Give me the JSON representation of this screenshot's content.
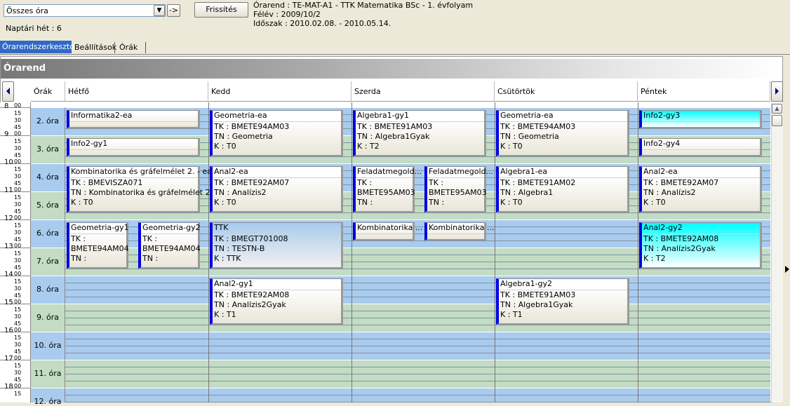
{
  "filter": {
    "selected": "Összes óra",
    "go": "->"
  },
  "refresh": "Frissítés",
  "info": [
    "Órarend : TE-MAT-A1 - TTK Matematika BSc - 1. évfolyam",
    "Félév : 2009/10/2",
    "Időszak : 2010.02.08. - 2010.05.14."
  ],
  "week": "Naptári hét : 6",
  "tabs": [
    "Órarendszerkeszto",
    "Beállítások",
    "Órák"
  ],
  "panel": {
    "title": "Órarend",
    "periods_header": "Órák",
    "days": [
      "Hétfő",
      "Kedd",
      "Szerda",
      "Csütörtök",
      "Péntek"
    ],
    "hours": [
      "8",
      "9",
      "10",
      "11",
      "12",
      "13",
      "14",
      "15",
      "16",
      "17",
      "18"
    ],
    "minutes": [
      "00",
      "15",
      "30",
      "45"
    ],
    "periods": [
      "2. óra",
      "3. óra",
      "4. óra",
      "5. óra",
      "6. óra",
      "7. óra",
      "8. óra",
      "9. óra",
      "10. óra",
      "11. óra",
      "12. óra"
    ],
    "events": [
      {
        "title": "Informatika2-ea",
        "lines": []
      },
      {
        "title": "Info2-gy1",
        "lines": []
      },
      {
        "title": "Kombinatorika és gráfelmélet 2. - ea",
        "lines": [
          "TK : BMEVISZA071",
          "TN : Kombinatorika és gráfelmélet 2",
          "K : T0"
        ]
      },
      {
        "title": "Geometria-gy1",
        "lines": [
          "TK :",
          "BMETE94AM04",
          "TN :"
        ]
      },
      {
        "title": "Geometria-gy2",
        "lines": [
          "TK :",
          "BMETE94AM04",
          "TN :"
        ]
      },
      {
        "title": "Geometria-ea",
        "lines": [
          "TK : BMETE94AM03",
          "TN : Geometria",
          "K : T0"
        ]
      },
      {
        "title": "Anal2-ea",
        "lines": [
          "TK : BMETE92AM07",
          "TN : Analízis2",
          "K : T0"
        ]
      },
      {
        "title": "TTK",
        "lines": [
          "TK : BMEGT701008",
          "TN : TESTN-B",
          "K : TTK"
        ]
      },
      {
        "title": "Anal2-gy1",
        "lines": [
          "TK : BMETE92AM08",
          "TN : Analízis2Gyak",
          "K : T1"
        ]
      },
      {
        "title": "Algebra1-gy1",
        "lines": [
          "TK : BMETE91AM03",
          "TN : Algebra1Gyak",
          "K : T2"
        ]
      },
      {
        "title": "Feladatmegold...",
        "lines": [
          "TK :",
          "BMETE95AM03",
          "TN :"
        ]
      },
      {
        "title": "Feladatmegold...",
        "lines": [
          "TK :",
          "BMETE95AM03",
          "TN :"
        ]
      },
      {
        "title": "Kombinatorika ...",
        "lines": []
      },
      {
        "title": "Kombinatorika ...",
        "lines": []
      },
      {
        "title": "Geometria-ea",
        "lines": [
          "TK : BMETE94AM03",
          "TN : Geometria",
          "K : T0"
        ]
      },
      {
        "title": "Algebra1-ea",
        "lines": [
          "TK : BMETE91AM02",
          "TN : Algebra1",
          "K : T0"
        ]
      },
      {
        "title": "Algebra1-gy2",
        "lines": [
          "TK : BMETE91AM03",
          "TN : Algebra1Gyak",
          "K : T1"
        ]
      },
      {
        "title": "Info2-gy3",
        "lines": []
      },
      {
        "title": "Info2-gy4",
        "lines": []
      },
      {
        "title": "Anal2-ea",
        "lines": [
          "TK : BMETE92AM07",
          "TN : Analízis2",
          "K : T0"
        ]
      },
      {
        "title": "Anal2-gy2",
        "lines": [
          "TK : BMETE92AM08",
          "TN : Analízis2Gyak",
          "K : T2"
        ]
      }
    ]
  }
}
